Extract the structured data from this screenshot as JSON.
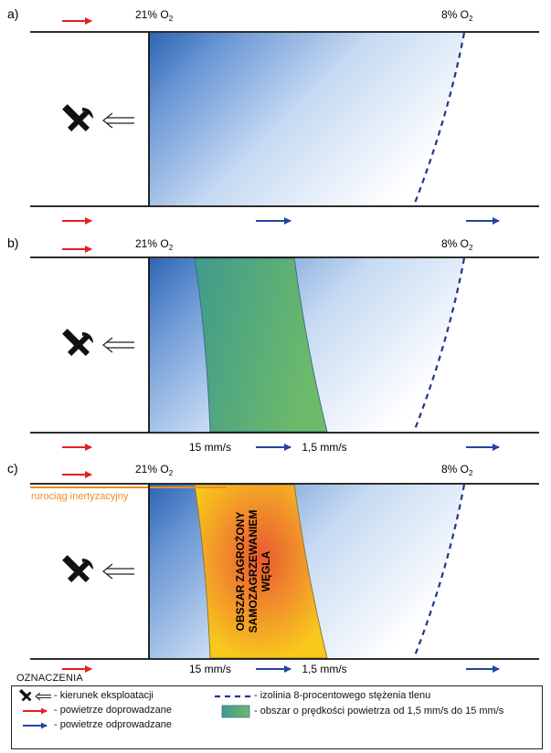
{
  "panels": [
    {
      "letter": "a)",
      "o2_left": "21% O",
      "o2_right": "8% O",
      "o2_sub": "2",
      "mining_zone": "none",
      "speed_labels": {
        "low": "",
        "high": ""
      },
      "pipeline_label": "",
      "hazard_label_lines": []
    },
    {
      "letter": "b)",
      "o2_left": "21% O",
      "o2_right": "8% O",
      "o2_sub": "2",
      "mining_zone": "green",
      "speed_labels": {
        "low": "15 mm/s",
        "high": "1,5 mm/s"
      },
      "pipeline_label": "",
      "hazard_label_lines": []
    },
    {
      "letter": "c)",
      "o2_left": "21% O",
      "o2_right": "8% O",
      "o2_sub": "2",
      "mining_zone": "hazard",
      "speed_labels": {
        "low": "15 mm/s",
        "high": "1,5 mm/s"
      },
      "pipeline_label": "rurociąg inertyzacyjny",
      "hazard_label_lines": [
        "OBSZAR ZAGROŻONY",
        "SAMOZAGRZEWANIEM",
        "WĘGLA"
      ]
    }
  ],
  "legend": {
    "title": "OZNACZENIA",
    "items": {
      "mining_direction": "- kierunek eksploatacji",
      "air_in": "- powietrze doprowadzane",
      "air_out": "- powietrze odprowadzane",
      "isoline": "- izolinia 8-procentowego stężenia tlenu",
      "speed_zone": "- obszar o prędkości powietrza od 1,5 mm/s do 15 mm/s"
    }
  },
  "colors": {
    "air_in": "#e41f26",
    "air_out": "#2444a0",
    "isoline": "#24358f",
    "goaf_dark": "#2e65b5",
    "goaf_light": "#ffffff",
    "green_zone": "#5fb26a",
    "hazard_outer": "#f7c21a",
    "hazard_inner": "#ee6a2f",
    "pipeline": "#f28c22"
  },
  "icons": {
    "mining": "hammer-pick-icon",
    "direction": "double-arrow-left-icon",
    "air": "arrow-right-icon"
  }
}
